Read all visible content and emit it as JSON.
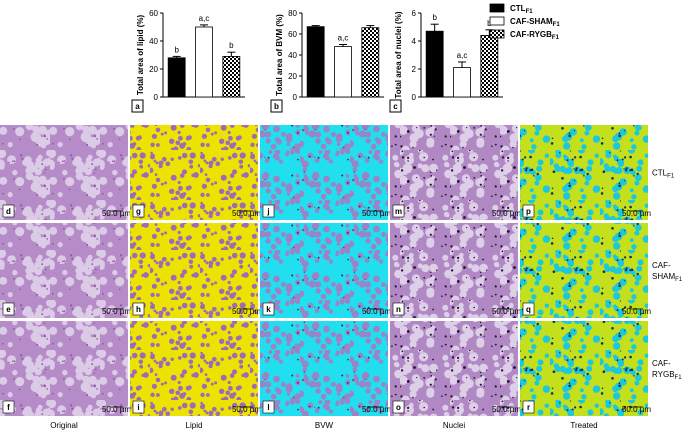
{
  "chart_data": [
    {
      "type": "bar",
      "panel": "a",
      "y_label": "Total area of lipid (%)",
      "ylim": [
        0,
        60
      ],
      "yticks": [
        0,
        20,
        40,
        60
      ],
      "categories": [
        "CTL",
        "CAF-SHAM",
        "CAF-RYGB"
      ],
      "values": [
        28,
        50,
        29
      ],
      "errors": [
        1,
        1.5,
        3
      ],
      "annotations": [
        "b",
        "a,c",
        "b"
      ]
    },
    {
      "type": "bar",
      "panel": "b",
      "y_label": "Total area of BVM (%)",
      "ylim": [
        0,
        80
      ],
      "yticks": [
        0,
        20,
        40,
        60,
        80
      ],
      "categories": [
        "CTL",
        "CAF-SHAM",
        "CAF-RYGB"
      ],
      "values": [
        67,
        48,
        66
      ],
      "errors": [
        1,
        2,
        2
      ],
      "annotations": [
        null,
        "a,c",
        null
      ]
    },
    {
      "type": "bar",
      "panel": "c",
      "y_label": "Total area of nuclei (%)",
      "ylim": [
        0,
        6
      ],
      "yticks": [
        0,
        2,
        4,
        6
      ],
      "categories": [
        "CTL",
        "CAF-SHAM",
        "CAF-RYGB"
      ],
      "values": [
        4.7,
        2.1,
        4.4
      ],
      "errors": [
        0.5,
        0.4,
        0.4
      ],
      "annotations": [
        "b",
        "a,c",
        "b"
      ]
    }
  ],
  "legend": [
    {
      "name": "CTL",
      "subscript": "F1",
      "color": "#000000",
      "pattern": "solid"
    },
    {
      "name": "CAF-SHAM",
      "subscript": "F1",
      "color": "#ffffff",
      "pattern": "solid"
    },
    {
      "name": "CAF-RYGB",
      "subscript": "F1",
      "color": "#000000",
      "pattern": "checker"
    }
  ],
  "image_grid": {
    "scale_bar": "50.0 µm",
    "columns": [
      {
        "label": "Original",
        "panels": [
          "d",
          "e",
          "f"
        ]
      },
      {
        "label": "Lipid",
        "panels": [
          "g",
          "h",
          "i"
        ]
      },
      {
        "label": "BVW",
        "panels": [
          "j",
          "k",
          "l"
        ]
      },
      {
        "label": "Nuclei",
        "panels": [
          "m",
          "n",
          "o"
        ]
      },
      {
        "label": "Treated",
        "panels": [
          "p",
          "q",
          "r"
        ]
      }
    ],
    "rows": [
      {
        "lines": [
          "CTL"
        ],
        "subscript": "F1"
      },
      {
        "lines": [
          "CAF-",
          "SHAM"
        ],
        "subscript": "F1"
      },
      {
        "lines": [
          "CAF-",
          "RYGB"
        ],
        "subscript": "F1"
      }
    ]
  }
}
